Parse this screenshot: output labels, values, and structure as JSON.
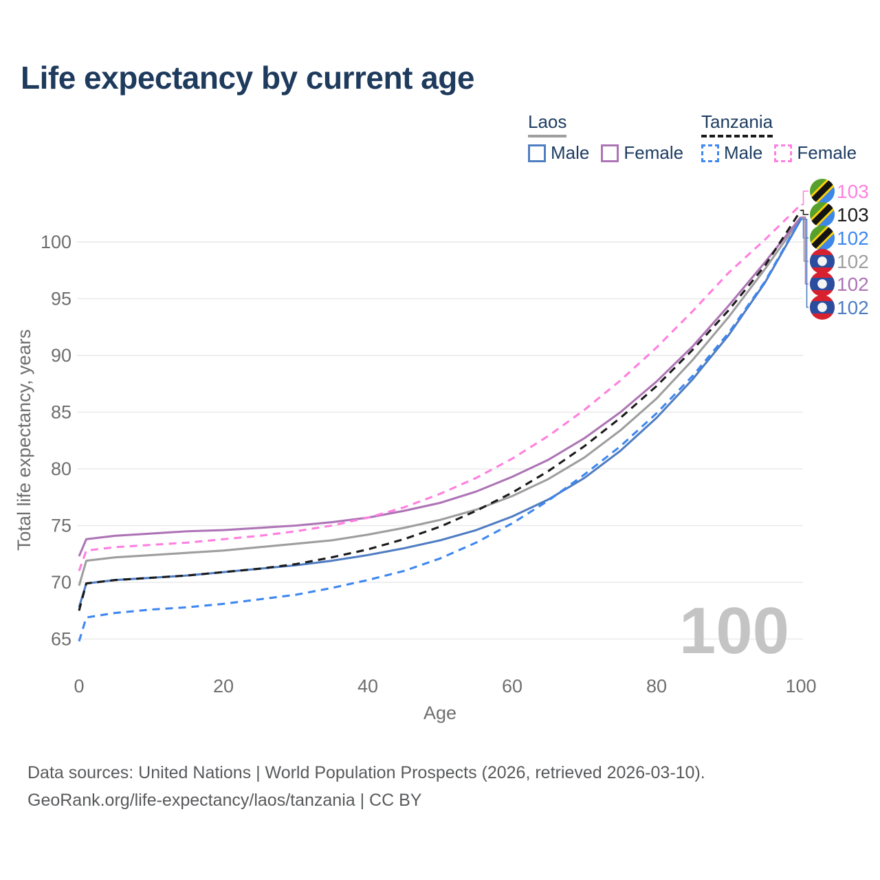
{
  "title": "Life expectancy by current age",
  "watermark_age": "100",
  "legend": {
    "groups": [
      {
        "name": "Laos",
        "line_style": "solid",
        "line_color": "#9e9e9e",
        "items": [
          {
            "label": "Male",
            "color": "#4f7dc2"
          },
          {
            "label": "Female",
            "color": "#ad74b5"
          }
        ]
      },
      {
        "name": "Tanzania",
        "line_style": "dashed",
        "line_color": "#1a1a1a",
        "items": [
          {
            "label": "Male",
            "color": "#3d87f0"
          },
          {
            "label": "Female",
            "color": "#ff7fdf"
          }
        ]
      }
    ]
  },
  "end_labels": [
    {
      "value": "103",
      "color": "#ff7fdf",
      "flag": "tanzania",
      "series": "Tanzania Female"
    },
    {
      "value": "103",
      "color": "#1a1a1a",
      "flag": "tanzania",
      "series": "Tanzania Both sexes"
    },
    {
      "value": "102",
      "color": "#3d87f0",
      "flag": "tanzania",
      "series": "Tanzania Male"
    },
    {
      "value": "102",
      "color": "#9e9e9e",
      "flag": "laos",
      "series": "Laos Both sexes"
    },
    {
      "value": "102",
      "color": "#ad74b5",
      "flag": "laos",
      "series": "Laos Female"
    },
    {
      "value": "102",
      "color": "#4f7dc2",
      "flag": "laos",
      "series": "Laos Male"
    }
  ],
  "chart_data": {
    "type": "line",
    "title": "Life expectancy by current age",
    "xlabel": "Age",
    "ylabel": "Total life expectancy, years",
    "x_ticks": [
      0,
      20,
      40,
      60,
      80,
      100
    ],
    "y_ticks": [
      65,
      70,
      75,
      80,
      85,
      90,
      95,
      100
    ],
    "xlim": [
      0,
      100
    ],
    "ylim": [
      63.8,
      104
    ],
    "grid": "horizontal",
    "legend_position": "top-right",
    "ages": [
      0,
      1,
      5,
      10,
      15,
      20,
      25,
      30,
      35,
      40,
      45,
      50,
      55,
      60,
      65,
      70,
      75,
      80,
      85,
      90,
      95,
      100
    ],
    "series": [
      {
        "name": "Laos Both sexes",
        "country": "Laos",
        "sex": "both",
        "color": "#9e9e9e",
        "dash": false,
        "end_label": "102",
        "values": [
          69.7,
          71.9,
          72.2,
          72.4,
          72.6,
          72.8,
          73.1,
          73.4,
          73.7,
          74.2,
          74.8,
          75.5,
          76.4,
          77.6,
          79.1,
          81.0,
          83.4,
          86.2,
          89.6,
          93.4,
          97.6,
          102.1
        ]
      },
      {
        "name": "Laos Female",
        "country": "Laos",
        "sex": "female",
        "color": "#ad74b5",
        "dash": false,
        "end_label": "102",
        "values": [
          72.3,
          73.8,
          74.1,
          74.3,
          74.5,
          74.6,
          74.8,
          75.0,
          75.3,
          75.7,
          76.3,
          77.0,
          78.0,
          79.3,
          80.8,
          82.7,
          85.0,
          87.7,
          90.8,
          94.4,
          98.2,
          102.2
        ]
      },
      {
        "name": "Laos Male",
        "country": "Laos",
        "sex": "male",
        "color": "#4f7dc2",
        "dash": false,
        "end_label": "102",
        "values": [
          67.8,
          69.9,
          70.2,
          70.4,
          70.6,
          70.9,
          71.2,
          71.5,
          71.9,
          72.4,
          73.0,
          73.7,
          74.6,
          75.8,
          77.3,
          79.2,
          81.6,
          84.5,
          87.9,
          91.8,
          96.4,
          102.0
        ]
      },
      {
        "name": "Tanzania Male",
        "country": "Tanzania",
        "sex": "male",
        "color": "#3d87f0",
        "dash": true,
        "end_label": "102",
        "values": [
          64.8,
          66.9,
          67.3,
          67.6,
          67.8,
          68.1,
          68.5,
          68.9,
          69.5,
          70.2,
          71.0,
          72.1,
          73.5,
          75.2,
          77.2,
          79.5,
          82.0,
          84.9,
          88.2,
          92.0,
          96.5,
          102.1
        ]
      },
      {
        "name": "Tanzania Both sexes",
        "country": "Tanzania",
        "sex": "both",
        "color": "#1a1a1a",
        "dash": true,
        "end_label": "103",
        "values": [
          67.5,
          69.9,
          70.2,
          70.4,
          70.6,
          70.9,
          71.2,
          71.6,
          72.2,
          72.9,
          73.8,
          74.9,
          76.3,
          77.9,
          79.8,
          82.0,
          84.5,
          87.3,
          90.5,
          94.0,
          97.9,
          102.8
        ]
      },
      {
        "name": "Tanzania Female",
        "country": "Tanzania",
        "sex": "female",
        "color": "#ff7fdf",
        "dash": true,
        "end_label": "103",
        "values": [
          71.0,
          72.8,
          73.1,
          73.3,
          73.5,
          73.8,
          74.1,
          74.5,
          75.0,
          75.7,
          76.6,
          77.8,
          79.2,
          80.9,
          82.9,
          85.2,
          87.8,
          90.7,
          93.9,
          97.3,
          100.2,
          103.3
        ]
      }
    ]
  },
  "footer": {
    "line1": "Data sources: United Nations | World Population Prospects (2026, retrieved 2026-03-10).",
    "line2": "GeoRank.org/life-expectancy/laos/tanzania | CC BY"
  }
}
